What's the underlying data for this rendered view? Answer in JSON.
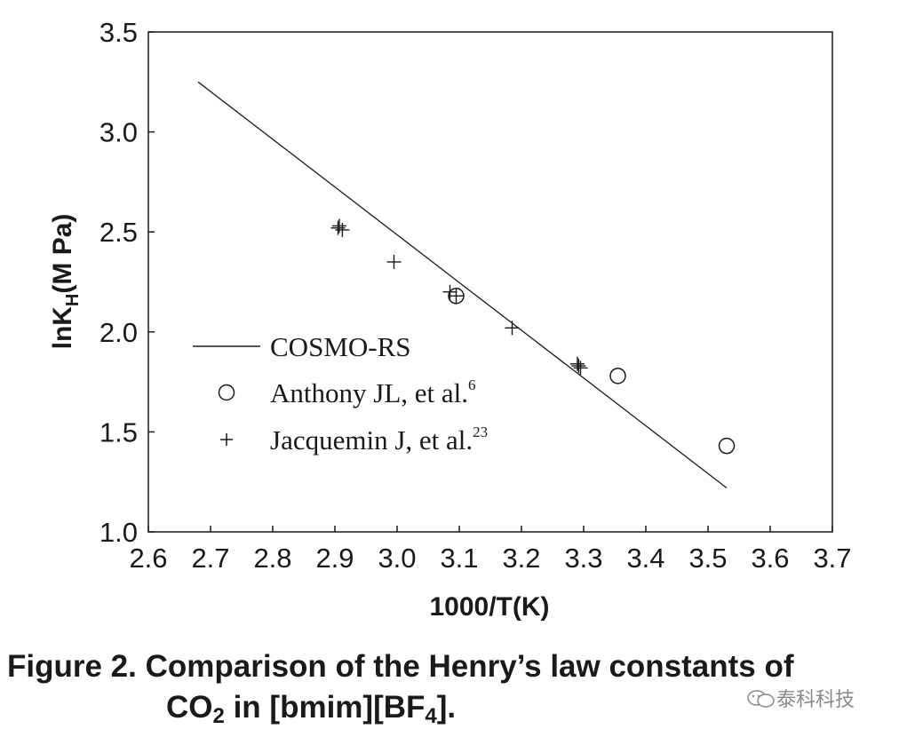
{
  "chart_data": {
    "type": "scatter",
    "xlabel": "1000/T(K)",
    "ylabel": "lnK",
    "ylabel_sub": "H",
    "ylabel_unit": "(M Pa)",
    "xlim": [
      2.6,
      3.7
    ],
    "ylim": [
      1.0,
      3.5
    ],
    "xticks": [
      "2.6",
      "2.7",
      "2.8",
      "2.9",
      "3.0",
      "3.1",
      "3.2",
      "3.3",
      "3.4",
      "3.5",
      "3.6",
      "3.7"
    ],
    "yticks": [
      "1.0",
      "1.5",
      "2.0",
      "2.5",
      "3.0",
      "3.5"
    ],
    "grid": false,
    "legend_position": "lower-left",
    "series": [
      {
        "name": "COSMO-RS",
        "marker": "line",
        "x": [
          2.68,
          3.53
        ],
        "y": [
          3.25,
          1.22
        ]
      },
      {
        "name": "Anthony JL, et al.",
        "name_sup": "6",
        "marker": "circle",
        "x": [
          3.095,
          3.355,
          3.53
        ],
        "y": [
          2.18,
          1.78,
          1.43
        ]
      },
      {
        "name": "Jacquemin J, et al.",
        "name_sup": "23",
        "marker": "plus",
        "x": [
          2.905,
          2.907,
          2.912,
          2.995,
          3.085,
          3.095,
          3.185,
          3.29,
          3.292,
          3.295
        ],
        "y": [
          2.52,
          2.53,
          2.51,
          2.35,
          2.2,
          2.18,
          2.02,
          1.84,
          1.83,
          1.82
        ]
      }
    ]
  },
  "caption": {
    "label": "Figure 2.",
    "text1": "Comparison of the Henry’s law constants of",
    "text2a": "CO",
    "text2sub": "2",
    "text2b": " in [bmim][BF",
    "text2sub2": "4",
    "text2c": "]."
  },
  "watermark": {
    "text": "泰科科技",
    "icon": "wechat-icon"
  }
}
